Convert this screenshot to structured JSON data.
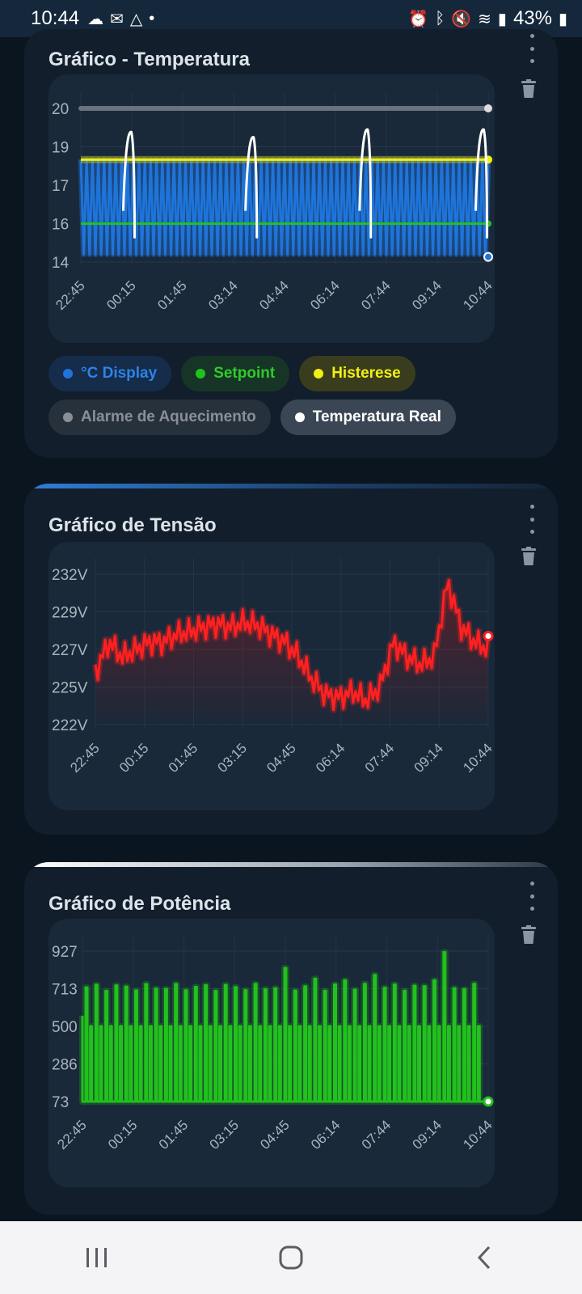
{
  "status_bar": {
    "time": "10:44",
    "battery": "43%",
    "left_icons": [
      "cloud-icon",
      "gmail-icon",
      "drive-icon",
      "dot-icon"
    ],
    "right_icons": [
      "alarm-icon",
      "bluetooth-icon",
      "mute-icon",
      "wifi-icon",
      "signal-icon"
    ]
  },
  "cards": {
    "temperature": {
      "title": "Gráfico - Temperatura",
      "legend": [
        {
          "label": "°C Display",
          "color": "#1e74d9",
          "bg": "#152c4a",
          "text": "#2d83e6"
        },
        {
          "label": "Setpoint",
          "color": "#22c11e",
          "bg": "#173526",
          "text": "#2fcb2a"
        },
        {
          "label": "Histerese",
          "color": "#f1ef16",
          "bg": "#3a3d1d",
          "text": "#f1ef16"
        },
        {
          "label": "Alarme de Aquecimento",
          "color": "#8a8f96",
          "bg": "#27313c",
          "text": "#8a8f96"
        },
        {
          "label": "Temperatura Real",
          "color": "#ffffff",
          "bg": "#3b4654",
          "text": "#ffffff"
        }
      ]
    },
    "voltage": {
      "title": "Gráfico de Tensão"
    },
    "power": {
      "title": "Gráfico de Potência"
    }
  },
  "chart_data": [
    {
      "type": "line",
      "title": "Gráfico - Temperatura",
      "y_ticks": [
        "20",
        "19",
        "17",
        "16",
        "14"
      ],
      "x_ticks": [
        "22:45",
        "00:15",
        "01:45",
        "03:14",
        "04:44",
        "06:14",
        "07:44",
        "09:14",
        "10:44"
      ],
      "ylim": [
        14,
        20
      ],
      "series": [
        {
          "name": "°C Display",
          "color": "#1e74d9",
          "pattern": "oscillation",
          "low": 14.3,
          "high": 18.0,
          "cycles": 70,
          "final": 14.2
        },
        {
          "name": "Setpoint",
          "color": "#22c11e",
          "constant": 15.5
        },
        {
          "name": "Histerese",
          "color": "#f1ef16",
          "constant": 18.0
        },
        {
          "name": "Alarme de Aquecimento",
          "color": "#c9ccd1",
          "constant": 20.0
        },
        {
          "name": "Temperatura Real",
          "color": "#ffffff",
          "peaks": [
            {
              "t": 0.12,
              "v": 19.2
            },
            {
              "t": 0.42,
              "v": 19.0
            },
            {
              "t": 0.7,
              "v": 19.3
            },
            {
              "t": 0.985,
              "v": 19.3
            }
          ]
        }
      ]
    },
    {
      "type": "area",
      "title": "Gráfico de Tensão",
      "y_ticks": [
        "232V",
        "229V",
        "227V",
        "225V",
        "222V"
      ],
      "x_ticks": [
        "22:45",
        "00:15",
        "01:45",
        "03:15",
        "04:45",
        "06:14",
        "07:44",
        "09:14",
        "10:44"
      ],
      "ylim": [
        222,
        232
      ],
      "series": [
        {
          "name": "Tensão",
          "color": "#ff2020",
          "values": [
            225.5,
            227.5,
            226.5,
            227.0,
            227.5,
            227.5,
            228.0,
            228.2,
            228.5,
            228.7,
            228.5,
            228.8,
            228.6,
            228.0,
            227.5,
            226.5,
            225.0,
            224.0,
            223.8,
            224.2,
            223.6,
            224.5,
            227.5,
            226.5,
            226.0,
            226.5,
            231.5,
            228.5,
            227.5,
            227.0
          ]
        }
      ]
    },
    {
      "type": "line",
      "title": "Gráfico de Potência",
      "y_ticks": [
        "927",
        "713",
        "500",
        "286",
        "73"
      ],
      "x_ticks": [
        "22:45",
        "00:15",
        "01:45",
        "03:15",
        "04:45",
        "06:14",
        "07:44",
        "09:14",
        "10:44"
      ],
      "ylim": [
        73,
        927
      ],
      "series": [
        {
          "name": "Potência",
          "color": "#22c11e",
          "baseline": 73,
          "spikes": 40,
          "typical_peak": 720,
          "max_peak": 920
        }
      ]
    }
  ]
}
